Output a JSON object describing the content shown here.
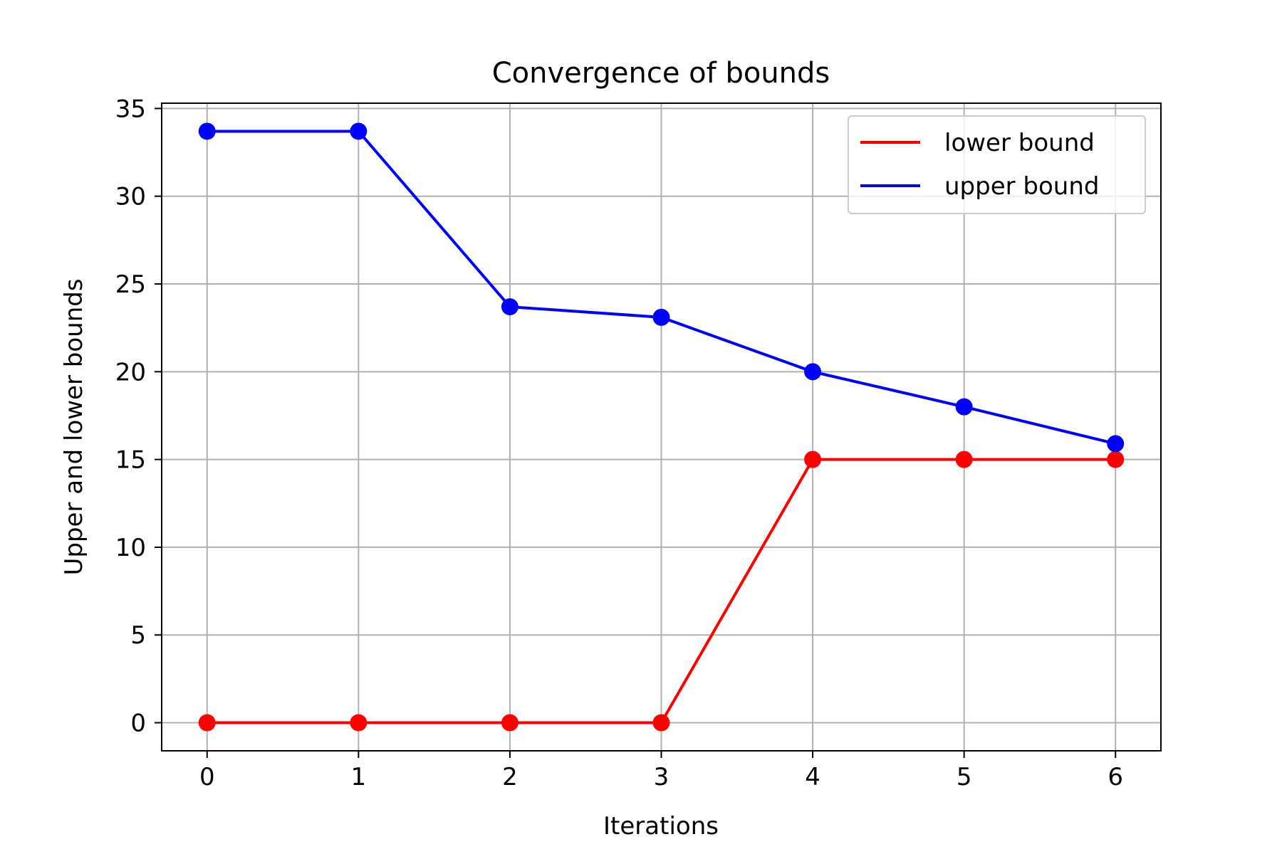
{
  "chart_data": {
    "type": "line",
    "title": "Convergence of bounds",
    "xlabel": "Iterations",
    "ylabel": "Upper and lower bounds",
    "x": [
      0,
      1,
      2,
      3,
      4,
      5,
      6
    ],
    "xlim": [
      -0.3,
      6.3
    ],
    "ylim": [
      -1.6,
      35.3
    ],
    "xticks": [
      "0",
      "1",
      "2",
      "3",
      "4",
      "5",
      "6"
    ],
    "yticks": [
      "0",
      "5",
      "10",
      "15",
      "20",
      "25",
      "30",
      "35"
    ],
    "grid": true,
    "legend_position": "top-right",
    "series": [
      {
        "name": "lower bound",
        "color": "#ff0000",
        "marker": "circle",
        "values": [
          0,
          0,
          0,
          0,
          15,
          15,
          15
        ]
      },
      {
        "name": "upper bound",
        "color": "#0000ff",
        "marker": "circle",
        "values": [
          33.7,
          33.7,
          23.7,
          23.1,
          20.0,
          18.0,
          15.9
        ]
      }
    ]
  }
}
